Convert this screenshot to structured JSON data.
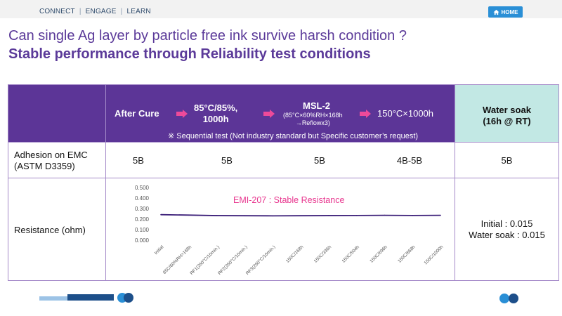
{
  "nav": {
    "items": [
      "CONNECT",
      "ENGAGE",
      "LEARN"
    ],
    "home_label": "HOME"
  },
  "slide": {
    "title": "Can single Ag layer by particle free ink survive harsh condition ?",
    "subtitle": "Stable performance through Reliability test conditions"
  },
  "table": {
    "header": {
      "step1": "After Cure",
      "step2_line1": "85°C/85%,",
      "step2_line2": "1000h",
      "step3": "MSL-2",
      "step3_sub1": "(85°C×60%RH×168h",
      "step3_sub2": "→Reflowx3)",
      "step4": "150°C×1000h",
      "note": "※ Sequential test (Not industry standard but Specific customer’s request)",
      "water_line1": "Water soak",
      "water_line2": "(16h @ RT)"
    },
    "adhesion": {
      "label_line1": "Adhesion on EMC",
      "label_line2": "(ASTM D3359)",
      "values": [
        "5B",
        "5B",
        "5B",
        "4B-5B",
        "5B"
      ]
    },
    "resistance": {
      "label": "Resistance (ohm)",
      "value_line1": "Initial : 0.015",
      "value_line2": "Water soak : 0.015"
    }
  },
  "chart_data": {
    "type": "line",
    "title": "EMI-207 : Stable Resistance",
    "categories": [
      "Initial",
      "85C/60%RH>168h",
      "RF1(260°C/10min.)",
      "RF2(260°C/10min.)",
      "RF3(260°C/10min.)",
      "150C/168h",
      "150C/336h",
      "150C/504h",
      "150C/696h",
      "150C/868h",
      "150C/1000h"
    ],
    "series": [
      {
        "values": [
          0.242,
          0.238,
          0.233,
          0.232,
          0.231,
          0.232,
          0.233,
          0.234,
          0.236,
          0.234,
          0.236
        ],
        "color": "#3b1e78"
      }
    ],
    "ylim": [
      0,
      0.5
    ],
    "yticks": [
      "0.000",
      "0.100",
      "0.200",
      "0.300",
      "0.400",
      "0.500"
    ],
    "grid": false,
    "title_color": "#e8378f"
  },
  "colors": {
    "purple": "#5c3597",
    "teal": "#c2e8e4",
    "arrow": "#ee4a9a",
    "title": "#5b3a99"
  }
}
